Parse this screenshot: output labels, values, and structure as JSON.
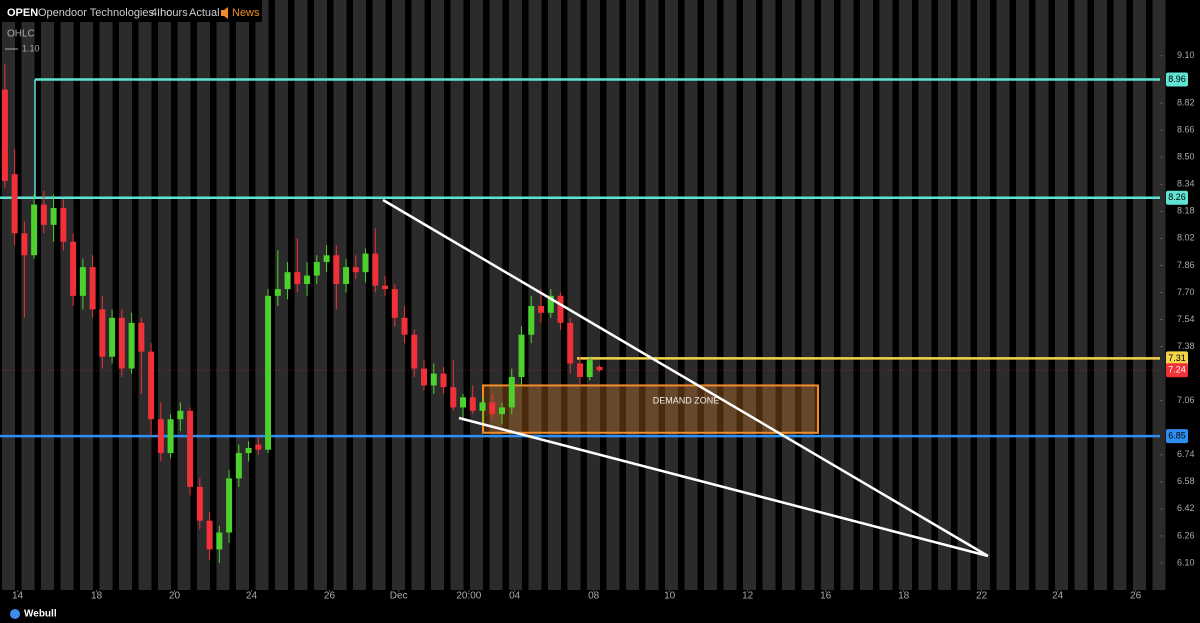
{
  "chart_data": {
    "type": "candlestick",
    "header": {
      "symbol": "OPEN",
      "name": "Opendoor Technologies Inc",
      "interval": "4 hours",
      "adjustment": "Actual",
      "news": "News",
      "indicator": "OHLC",
      "scale_value": "1.10"
    },
    "brand": "Webull",
    "up_color": "#4cd12e",
    "down_color": "#f0313a",
    "open": [
      8.9,
      8.4,
      8.05,
      7.92,
      8.22,
      8.1,
      8.2,
      8.0,
      7.68,
      7.85,
      7.6,
      7.32,
      7.55,
      7.25,
      7.52,
      7.35,
      6.95,
      6.75,
      6.95,
      7.0,
      6.55,
      6.35,
      6.18,
      6.28,
      6.6,
      6.75,
      6.8,
      6.77,
      7.68,
      7.72,
      7.82,
      7.75,
      7.8,
      7.88,
      7.92,
      7.75,
      7.85,
      7.82,
      7.93,
      7.74,
      7.72,
      7.55,
      7.45,
      7.25,
      7.15,
      7.22,
      7.14,
      7.02,
      7.08,
      7.0,
      7.05,
      6.98,
      7.02,
      7.2,
      7.45,
      7.62,
      7.58,
      7.68,
      7.52,
      7.28,
      7.2,
      7.26
    ],
    "high": [
      9.05,
      8.55,
      8.12,
      8.28,
      8.3,
      8.28,
      8.25,
      8.05,
      7.9,
      7.92,
      7.68,
      7.6,
      7.6,
      7.58,
      7.55,
      7.4,
      7.05,
      6.98,
      7.05,
      7.02,
      6.6,
      6.4,
      6.32,
      6.65,
      6.8,
      6.82,
      6.85,
      7.72,
      7.95,
      7.88,
      8.02,
      7.88,
      7.92,
      7.98,
      7.98,
      7.9,
      7.92,
      7.96,
      8.08,
      7.8,
      7.75,
      7.62,
      7.48,
      7.3,
      7.28,
      7.26,
      7.3,
      7.1,
      7.15,
      7.08,
      7.1,
      7.05,
      7.25,
      7.5,
      7.68,
      7.72,
      7.72,
      7.7,
      7.55,
      7.32,
      7.32,
      7.27
    ],
    "low": [
      8.32,
      7.98,
      7.55,
      7.9,
      8.05,
      8.0,
      7.95,
      7.62,
      7.6,
      7.55,
      7.25,
      7.28,
      7.2,
      7.22,
      7.1,
      6.85,
      6.7,
      6.72,
      6.88,
      6.5,
      6.3,
      6.12,
      6.1,
      6.22,
      6.55,
      6.7,
      6.74,
      6.75,
      7.62,
      7.66,
      7.7,
      7.68,
      7.75,
      7.82,
      7.6,
      7.7,
      7.78,
      7.76,
      7.7,
      7.68,
      7.5,
      7.4,
      7.2,
      7.12,
      7.1,
      7.1,
      7.0,
      6.95,
      6.98,
      6.92,
      6.95,
      6.92,
      6.98,
      7.15,
      7.4,
      7.52,
      7.55,
      7.48,
      7.22,
      7.15,
      7.18,
      7.23
    ],
    "close": [
      8.36,
      8.05,
      7.92,
      8.22,
      8.1,
      8.2,
      8.0,
      7.68,
      7.85,
      7.6,
      7.32,
      7.55,
      7.25,
      7.52,
      7.35,
      6.95,
      6.75,
      6.95,
      7.0,
      6.55,
      6.35,
      6.18,
      6.28,
      6.6,
      6.75,
      6.78,
      6.77,
      7.68,
      7.72,
      7.82,
      7.75,
      7.8,
      7.88,
      7.92,
      7.75,
      7.85,
      7.82,
      7.93,
      7.74,
      7.72,
      7.55,
      7.45,
      7.25,
      7.15,
      7.22,
      7.14,
      7.02,
      7.08,
      7.0,
      7.05,
      6.98,
      7.02,
      7.2,
      7.45,
      7.62,
      7.58,
      7.68,
      7.52,
      7.28,
      7.2,
      7.3,
      7.24
    ],
    "ylim": [
      5.94,
      9.43
    ],
    "yticks": [
      {
        "value": 9.1,
        "label": "9.10"
      },
      8.82,
      8.66,
      {
        "value": 8.5,
        "label": "8.50"
      },
      8.34,
      8.18,
      8.02,
      7.86,
      {
        "value": 7.7,
        "label": "7.70"
      },
      7.54,
      7.38,
      7.06,
      6.74,
      6.58,
      6.42,
      6.26,
      {
        "value": 6.1,
        "label": "6.10"
      }
    ],
    "xlim": [
      -0.5,
      118.5
    ],
    "xticks": [
      {
        "value": 1.3,
        "label": "14"
      },
      {
        "value": 9.4,
        "label": "18"
      },
      {
        "value": 17.4,
        "label": "20"
      },
      {
        "value": 25.3,
        "label": "24"
      },
      {
        "value": 33.3,
        "label": "26"
      },
      {
        "value": 40.4,
        "label": "Dec"
      },
      {
        "value": 47.6,
        "label": "20:00"
      },
      {
        "value": 52.3,
        "label": "04"
      },
      {
        "value": 60.4,
        "label": "08"
      },
      {
        "value": 68.2,
        "label": "10"
      },
      {
        "value": 76.2,
        "label": "12"
      },
      {
        "value": 84.2,
        "label": "16"
      },
      {
        "value": 92.2,
        "label": "18"
      },
      {
        "value": 100.2,
        "label": "22"
      },
      {
        "value": 108,
        "label": "24"
      },
      {
        "value": 116,
        "label": "26"
      }
    ],
    "levels": [
      {
        "value": 8.96,
        "color": "#5fe3d3"
      },
      {
        "value": 8.26,
        "color": "#5fe3d3"
      },
      {
        "value": 7.31,
        "color": "#f5d547"
      },
      {
        "value": 6.85,
        "color": "#2f8ff0"
      }
    ],
    "zone": {
      "label": "DEMAND ZONE",
      "high": 7.15,
      "low": 6.87,
      "color": "#f28c28"
    }
  }
}
